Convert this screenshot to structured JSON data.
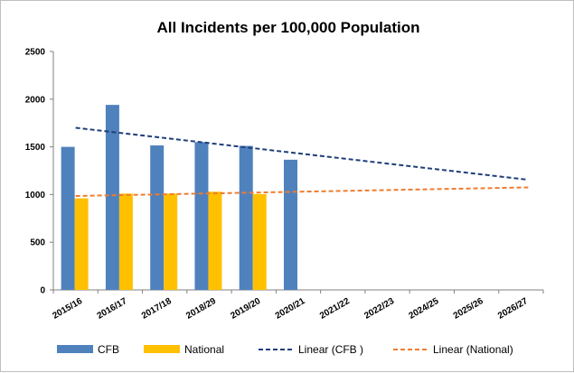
{
  "chart_data": {
    "type": "bar",
    "title": "All Incidents per 100,000 Population",
    "xlabel": "",
    "ylabel": "",
    "categories": [
      "2015/16",
      "2016/17",
      "2017/18",
      "2018/29",
      "2019/20",
      "2020/21",
      "2021/22",
      "2022/23",
      "2024/25",
      "2025/26",
      "2026/27"
    ],
    "ylim": [
      0,
      2500
    ],
    "yticks": [
      0,
      500,
      1000,
      1500,
      2000,
      2500
    ],
    "grid": false,
    "legend_position": "bottom",
    "series": [
      {
        "name": "CFB",
        "values": [
          1500,
          1940,
          1515,
          1550,
          1510,
          1365,
          null,
          null,
          null,
          null,
          null
        ],
        "color": "#4F81BD"
      },
      {
        "name": "National",
        "values": [
          960,
          1010,
          1010,
          1030,
          1005,
          null,
          null,
          null,
          null,
          null,
          null
        ],
        "color": "#FFC000"
      }
    ],
    "trendlines": [
      {
        "name": "Linear (CFB )",
        "start": 1700,
        "end": 1155,
        "color": "#1F3E7A"
      },
      {
        "name": "Linear (National)",
        "start": 985,
        "end": 1075,
        "color": "#ED7D31"
      }
    ]
  }
}
